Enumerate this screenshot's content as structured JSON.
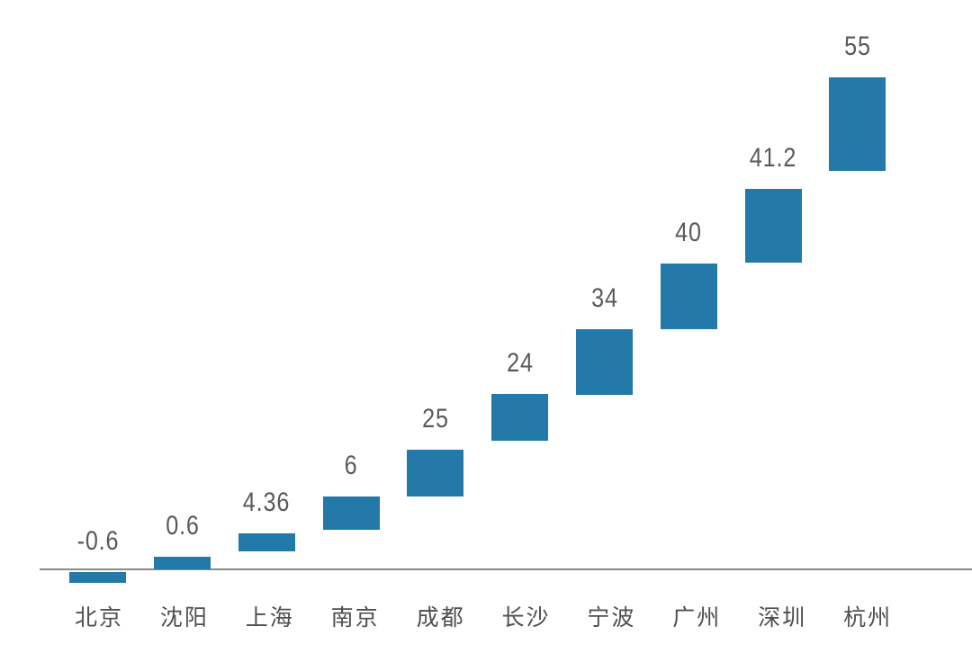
{
  "page": {
    "background_color": "#ffffff"
  },
  "chart_data": {
    "type": "bar",
    "subtype": "floating-bar-staircase",
    "title": "",
    "xlabel": "",
    "ylabel": "",
    "grid": false,
    "legend": null,
    "categories": [
      "北京",
      "沈阳",
      "上海",
      "南京",
      "成都",
      "长沙",
      "宁波",
      "广州",
      "深圳",
      "杭州"
    ],
    "values": [
      -0.6,
      0.6,
      4.36,
      6,
      25,
      24,
      34,
      40,
      41.2,
      55
    ],
    "value_labels": [
      "-0.6",
      "0.6",
      "4.36",
      "6",
      "25",
      "24",
      "34",
      "40",
      "41.2",
      "55"
    ],
    "bar_spans": [
      [
        -1.5,
        -0.3
      ],
      [
        0,
        1.4
      ],
      [
        2.0,
        4.05
      ],
      [
        4.4,
        8.15
      ],
      [
        8.15,
        13.35
      ],
      [
        14.35,
        19.6
      ],
      [
        19.5,
        26.85
      ],
      [
        26.85,
        34.2
      ],
      [
        34.3,
        42.55
      ],
      [
        44.55,
        55.0
      ]
    ],
    "ylim": [
      -2,
      60
    ],
    "axis": {
      "baseline_value": 0,
      "x_axis_visible": true,
      "y_axis_visible": false
    },
    "colors": {
      "bar_fill": "#2379a7",
      "axis_line": "#8a8a8a",
      "value_label_text": "#5a5a5a",
      "category_label_text": "#4f4f4f"
    }
  }
}
